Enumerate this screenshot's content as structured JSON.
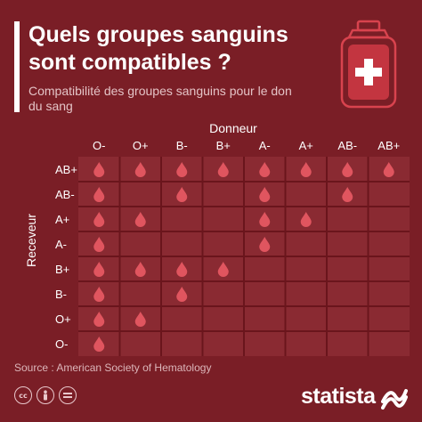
{
  "header": {
    "title": "Quels groupes sanguins sont compatibles ?",
    "subtitle": "Compatibilité des groupes sanguins pour le don du sang"
  },
  "chart_data": {
    "type": "table",
    "title": "Quels groupes sanguins sont compatibles ?",
    "subtitle": "Compatibilité des groupes sanguins pour le don du sang",
    "xlabel": "Donneur",
    "ylabel": "Receveur",
    "columns": [
      "O-",
      "O+",
      "B-",
      "B+",
      "A-",
      "A+",
      "AB-",
      "AB+"
    ],
    "rows": [
      "AB+",
      "AB-",
      "A+",
      "A-",
      "B+",
      "B-",
      "O+",
      "O-"
    ],
    "compatibility": [
      [
        1,
        1,
        1,
        1,
        1,
        1,
        1,
        1
      ],
      [
        1,
        0,
        1,
        0,
        1,
        0,
        1,
        0
      ],
      [
        1,
        1,
        0,
        0,
        1,
        1,
        0,
        0
      ],
      [
        1,
        0,
        0,
        0,
        1,
        0,
        0,
        0
      ],
      [
        1,
        1,
        1,
        1,
        0,
        0,
        0,
        0
      ],
      [
        1,
        0,
        1,
        0,
        0,
        0,
        0,
        0
      ],
      [
        1,
        1,
        0,
        0,
        0,
        0,
        0,
        0
      ],
      [
        1,
        0,
        0,
        0,
        0,
        0,
        0,
        0
      ]
    ],
    "marker": "blood-drop-icon",
    "grid": true
  },
  "footer": {
    "source": "Source : American Society of Hematology",
    "brand": "statista",
    "license_icons": [
      "creative-commons-icon",
      "attribution-icon",
      "no-derivatives-icon"
    ]
  },
  "colors": {
    "background": "#7a1e26",
    "cell": "#8a2a32",
    "gridline": "#6a151c",
    "drop": "#e0555f",
    "text": "#ffffff",
    "subtitle": "#e4c3c6"
  }
}
